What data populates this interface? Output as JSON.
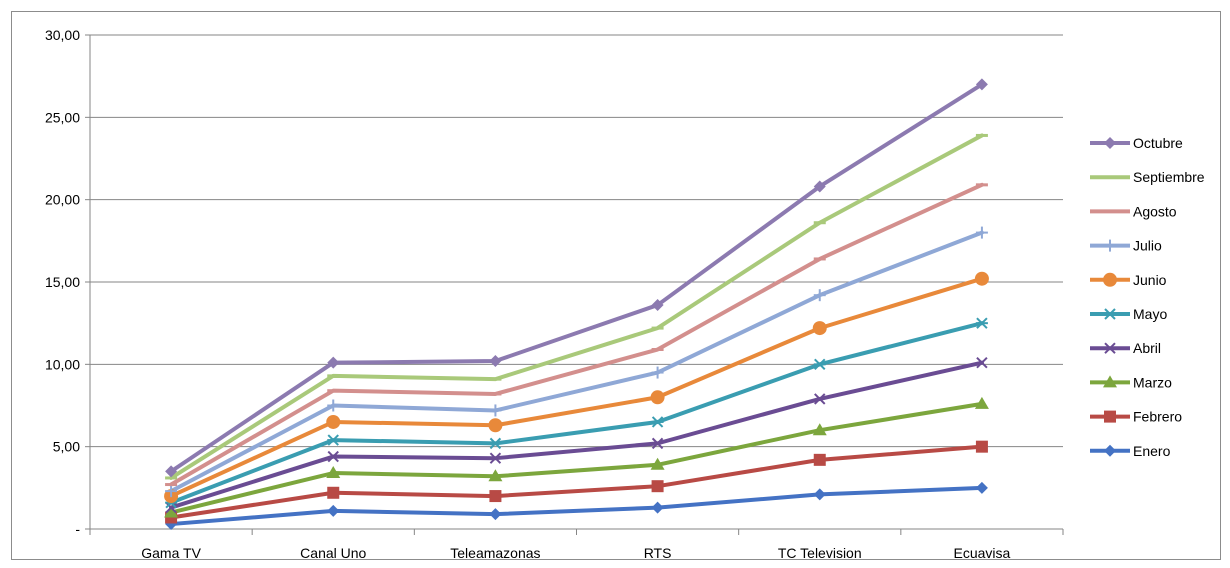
{
  "chart_data": {
    "type": "line",
    "categories": [
      "Gama TV",
      "Canal Uno",
      "Teleamazonas",
      "RTS",
      "TC Television",
      "Ecuavisa"
    ],
    "y_tick_labels": [
      "-",
      "5,00",
      "10,00",
      "15,00",
      "20,00",
      "25,00",
      "30,00"
    ],
    "ylim": [
      0,
      30
    ],
    "grid": "horizontal",
    "legend_position": "right",
    "series": [
      {
        "name": "Octubre",
        "color": "#8c7ab0",
        "marker": "diamond",
        "values": [
          3.5,
          10.1,
          10.2,
          13.6,
          20.8,
          27.0
        ]
      },
      {
        "name": "Septiembre",
        "color": "#a9c97a",
        "marker": "dash",
        "values": [
          3.1,
          9.3,
          9.1,
          12.2,
          18.6,
          23.9
        ]
      },
      {
        "name": "Agosto",
        "color": "#d38f8d",
        "marker": "dash",
        "values": [
          2.7,
          8.4,
          8.2,
          10.9,
          16.4,
          20.9
        ]
      },
      {
        "name": "Julio",
        "color": "#8fa8d6",
        "marker": "plus",
        "values": [
          2.3,
          7.5,
          7.2,
          9.5,
          14.2,
          18.0
        ]
      },
      {
        "name": "Junio",
        "color": "#e8893a",
        "marker": "circle",
        "values": [
          2.0,
          6.5,
          6.3,
          8.0,
          12.2,
          15.2
        ]
      },
      {
        "name": "Mayo",
        "color": "#3a9db1",
        "marker": "asterisk",
        "values": [
          1.6,
          5.4,
          5.2,
          6.5,
          10.0,
          12.5
        ]
      },
      {
        "name": "Abril",
        "color": "#6a4c93",
        "marker": "x",
        "values": [
          1.3,
          4.4,
          4.3,
          5.2,
          7.9,
          10.1
        ]
      },
      {
        "name": "Marzo",
        "color": "#7ca63d",
        "marker": "triangle",
        "values": [
          1.0,
          3.4,
          3.2,
          3.9,
          6.0,
          7.6
        ]
      },
      {
        "name": "Febrero",
        "color": "#b84a45",
        "marker": "square",
        "values": [
          0.7,
          2.2,
          2.0,
          2.6,
          4.2,
          5.0
        ]
      },
      {
        "name": "Enero",
        "color": "#4472c4",
        "marker": "diamond",
        "values": [
          0.3,
          1.1,
          0.9,
          1.3,
          2.1,
          2.5
        ]
      }
    ]
  }
}
